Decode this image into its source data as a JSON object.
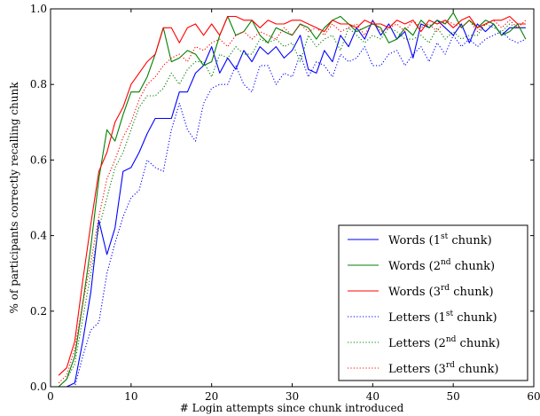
{
  "chart_data": {
    "type": "line",
    "xlabel": "# Login attempts since chunk introduced",
    "ylabel": "% of participants correctly recalling chunk",
    "xlim": [
      0,
      60
    ],
    "ylim": [
      0.0,
      1.0
    ],
    "xticks": [
      "0",
      "10",
      "20",
      "30",
      "40",
      "50",
      "60"
    ],
    "yticks": [
      "0.0",
      "0.2",
      "0.4",
      "0.6",
      "0.8",
      "1.0"
    ],
    "legend_position": "bottom-right",
    "grid": false,
    "x": [
      1,
      2,
      3,
      4,
      5,
      6,
      7,
      8,
      9,
      10,
      11,
      12,
      13,
      14,
      15,
      16,
      17,
      18,
      19,
      20,
      21,
      22,
      23,
      24,
      25,
      26,
      27,
      28,
      29,
      30,
      31,
      32,
      33,
      34,
      35,
      36,
      37,
      38,
      39,
      40,
      41,
      42,
      43,
      44,
      45,
      46,
      47,
      48,
      49,
      50,
      51,
      52,
      53,
      54,
      55,
      56,
      57,
      58,
      59
    ],
    "series": [
      {
        "name": "Words (1st chunk)",
        "base": "Words (1",
        "sup": "st",
        "tail": " chunk)",
        "color": "#0000ff",
        "style": "solid",
        "values": [
          0.0,
          0.0,
          0.01,
          0.12,
          0.25,
          0.44,
          0.35,
          0.42,
          0.57,
          0.58,
          0.62,
          0.67,
          0.71,
          0.71,
          0.71,
          0.78,
          0.78,
          0.83,
          0.85,
          0.9,
          0.83,
          0.87,
          0.84,
          0.89,
          0.86,
          0.9,
          0.88,
          0.9,
          0.87,
          0.89,
          0.93,
          0.84,
          0.83,
          0.89,
          0.86,
          0.93,
          0.9,
          0.95,
          0.92,
          0.97,
          0.93,
          0.96,
          0.92,
          0.94,
          0.87,
          0.96,
          0.95,
          0.97,
          0.95,
          0.93,
          0.96,
          0.91,
          0.96,
          0.94,
          0.96,
          0.93,
          0.95,
          0.95,
          0.95
        ]
      },
      {
        "name": "Words (2nd chunk)",
        "base": "Words (2",
        "sup": "nd",
        "tail": " chunk)",
        "color": "#008000",
        "style": "solid",
        "values": [
          0.0,
          0.02,
          0.08,
          0.22,
          0.37,
          0.55,
          0.68,
          0.65,
          0.72,
          0.78,
          0.78,
          0.82,
          0.88,
          0.95,
          0.86,
          0.87,
          0.89,
          0.88,
          0.85,
          0.86,
          0.93,
          0.98,
          0.93,
          0.94,
          0.97,
          0.93,
          0.91,
          0.95,
          0.94,
          0.93,
          0.96,
          0.95,
          0.92,
          0.95,
          0.97,
          0.98,
          0.96,
          0.94,
          0.95,
          0.96,
          0.95,
          0.91,
          0.92,
          0.95,
          0.93,
          0.97,
          0.95,
          0.97,
          0.96,
          0.99,
          0.95,
          0.97,
          0.95,
          0.97,
          0.96,
          0.93,
          0.94,
          0.96,
          0.92
        ]
      },
      {
        "name": "Words (3rd chunk)",
        "base": "Words (3",
        "sup": "rd",
        "tail": " chunk)",
        "color": "#ff0000",
        "style": "solid",
        "values": [
          0.03,
          0.05,
          0.12,
          0.28,
          0.43,
          0.57,
          0.62,
          0.7,
          0.74,
          0.8,
          0.83,
          0.86,
          0.88,
          0.95,
          0.95,
          0.91,
          0.95,
          0.96,
          0.93,
          0.96,
          0.93,
          0.98,
          0.98,
          0.97,
          0.97,
          0.95,
          0.97,
          0.96,
          0.96,
          0.97,
          0.97,
          0.96,
          0.95,
          0.94,
          0.97,
          0.96,
          0.96,
          0.95,
          0.97,
          0.96,
          0.96,
          0.95,
          0.97,
          0.96,
          0.97,
          0.94,
          0.97,
          0.96,
          0.97,
          0.95,
          0.97,
          0.98,
          0.95,
          0.96,
          0.97,
          0.97,
          0.98,
          0.96,
          0.96
        ]
      },
      {
        "name": "Letters (1st chunk)",
        "base": "Letters (1",
        "sup": "st",
        "tail": " chunk)",
        "color": "#0000ff",
        "style": "dotted",
        "values": [
          0.0,
          0.0,
          0.0,
          0.08,
          0.15,
          0.17,
          0.3,
          0.38,
          0.45,
          0.5,
          0.52,
          0.6,
          0.58,
          0.57,
          0.68,
          0.75,
          0.68,
          0.65,
          0.75,
          0.79,
          0.8,
          0.8,
          0.85,
          0.8,
          0.78,
          0.85,
          0.85,
          0.8,
          0.83,
          0.82,
          0.88,
          0.82,
          0.86,
          0.85,
          0.82,
          0.88,
          0.86,
          0.87,
          0.9,
          0.85,
          0.85,
          0.88,
          0.89,
          0.85,
          0.88,
          0.9,
          0.86,
          0.91,
          0.88,
          0.93,
          0.9,
          0.92,
          0.9,
          0.92,
          0.93,
          0.94,
          0.92,
          0.91,
          0.92
        ]
      },
      {
        "name": "Letters (2nd chunk)",
        "base": "Letters (2",
        "sup": "nd",
        "tail": " chunk)",
        "color": "#008000",
        "style": "dotted",
        "values": [
          0.0,
          0.02,
          0.06,
          0.18,
          0.3,
          0.42,
          0.5,
          0.58,
          0.62,
          0.68,
          0.74,
          0.77,
          0.77,
          0.79,
          0.83,
          0.8,
          0.84,
          0.86,
          0.86,
          0.82,
          0.88,
          0.87,
          0.9,
          0.88,
          0.88,
          0.92,
          0.91,
          0.92,
          0.9,
          0.91,
          0.86,
          0.93,
          0.9,
          0.92,
          0.93,
          0.89,
          0.95,
          0.93,
          0.91,
          0.93,
          0.92,
          0.95,
          0.94,
          0.92,
          0.92,
          0.93,
          0.91,
          0.95,
          0.92,
          0.94,
          0.92,
          0.93,
          0.93,
          0.96,
          0.95,
          0.94,
          0.96,
          0.95,
          0.95
        ]
      },
      {
        "name": "Letters (3rd chunk)",
        "base": "Letters (3",
        "sup": "rd",
        "tail": " chunk)",
        "color": "#ff0000",
        "style": "dotted",
        "values": [
          0.01,
          0.03,
          0.1,
          0.22,
          0.33,
          0.45,
          0.55,
          0.6,
          0.66,
          0.7,
          0.76,
          0.8,
          0.82,
          0.85,
          0.87,
          0.88,
          0.86,
          0.9,
          0.89,
          0.91,
          0.92,
          0.9,
          0.93,
          0.94,
          0.92,
          0.94,
          0.93,
          0.92,
          0.95,
          0.93,
          0.96,
          0.94,
          0.95,
          0.93,
          0.96,
          0.94,
          0.95,
          0.96,
          0.93,
          0.97,
          0.94,
          0.95,
          0.96,
          0.94,
          0.97,
          0.95,
          0.96,
          0.94,
          0.97,
          0.96,
          0.95,
          0.97,
          0.94,
          0.96,
          0.97,
          0.95,
          0.97,
          0.95,
          0.97
        ]
      }
    ]
  }
}
